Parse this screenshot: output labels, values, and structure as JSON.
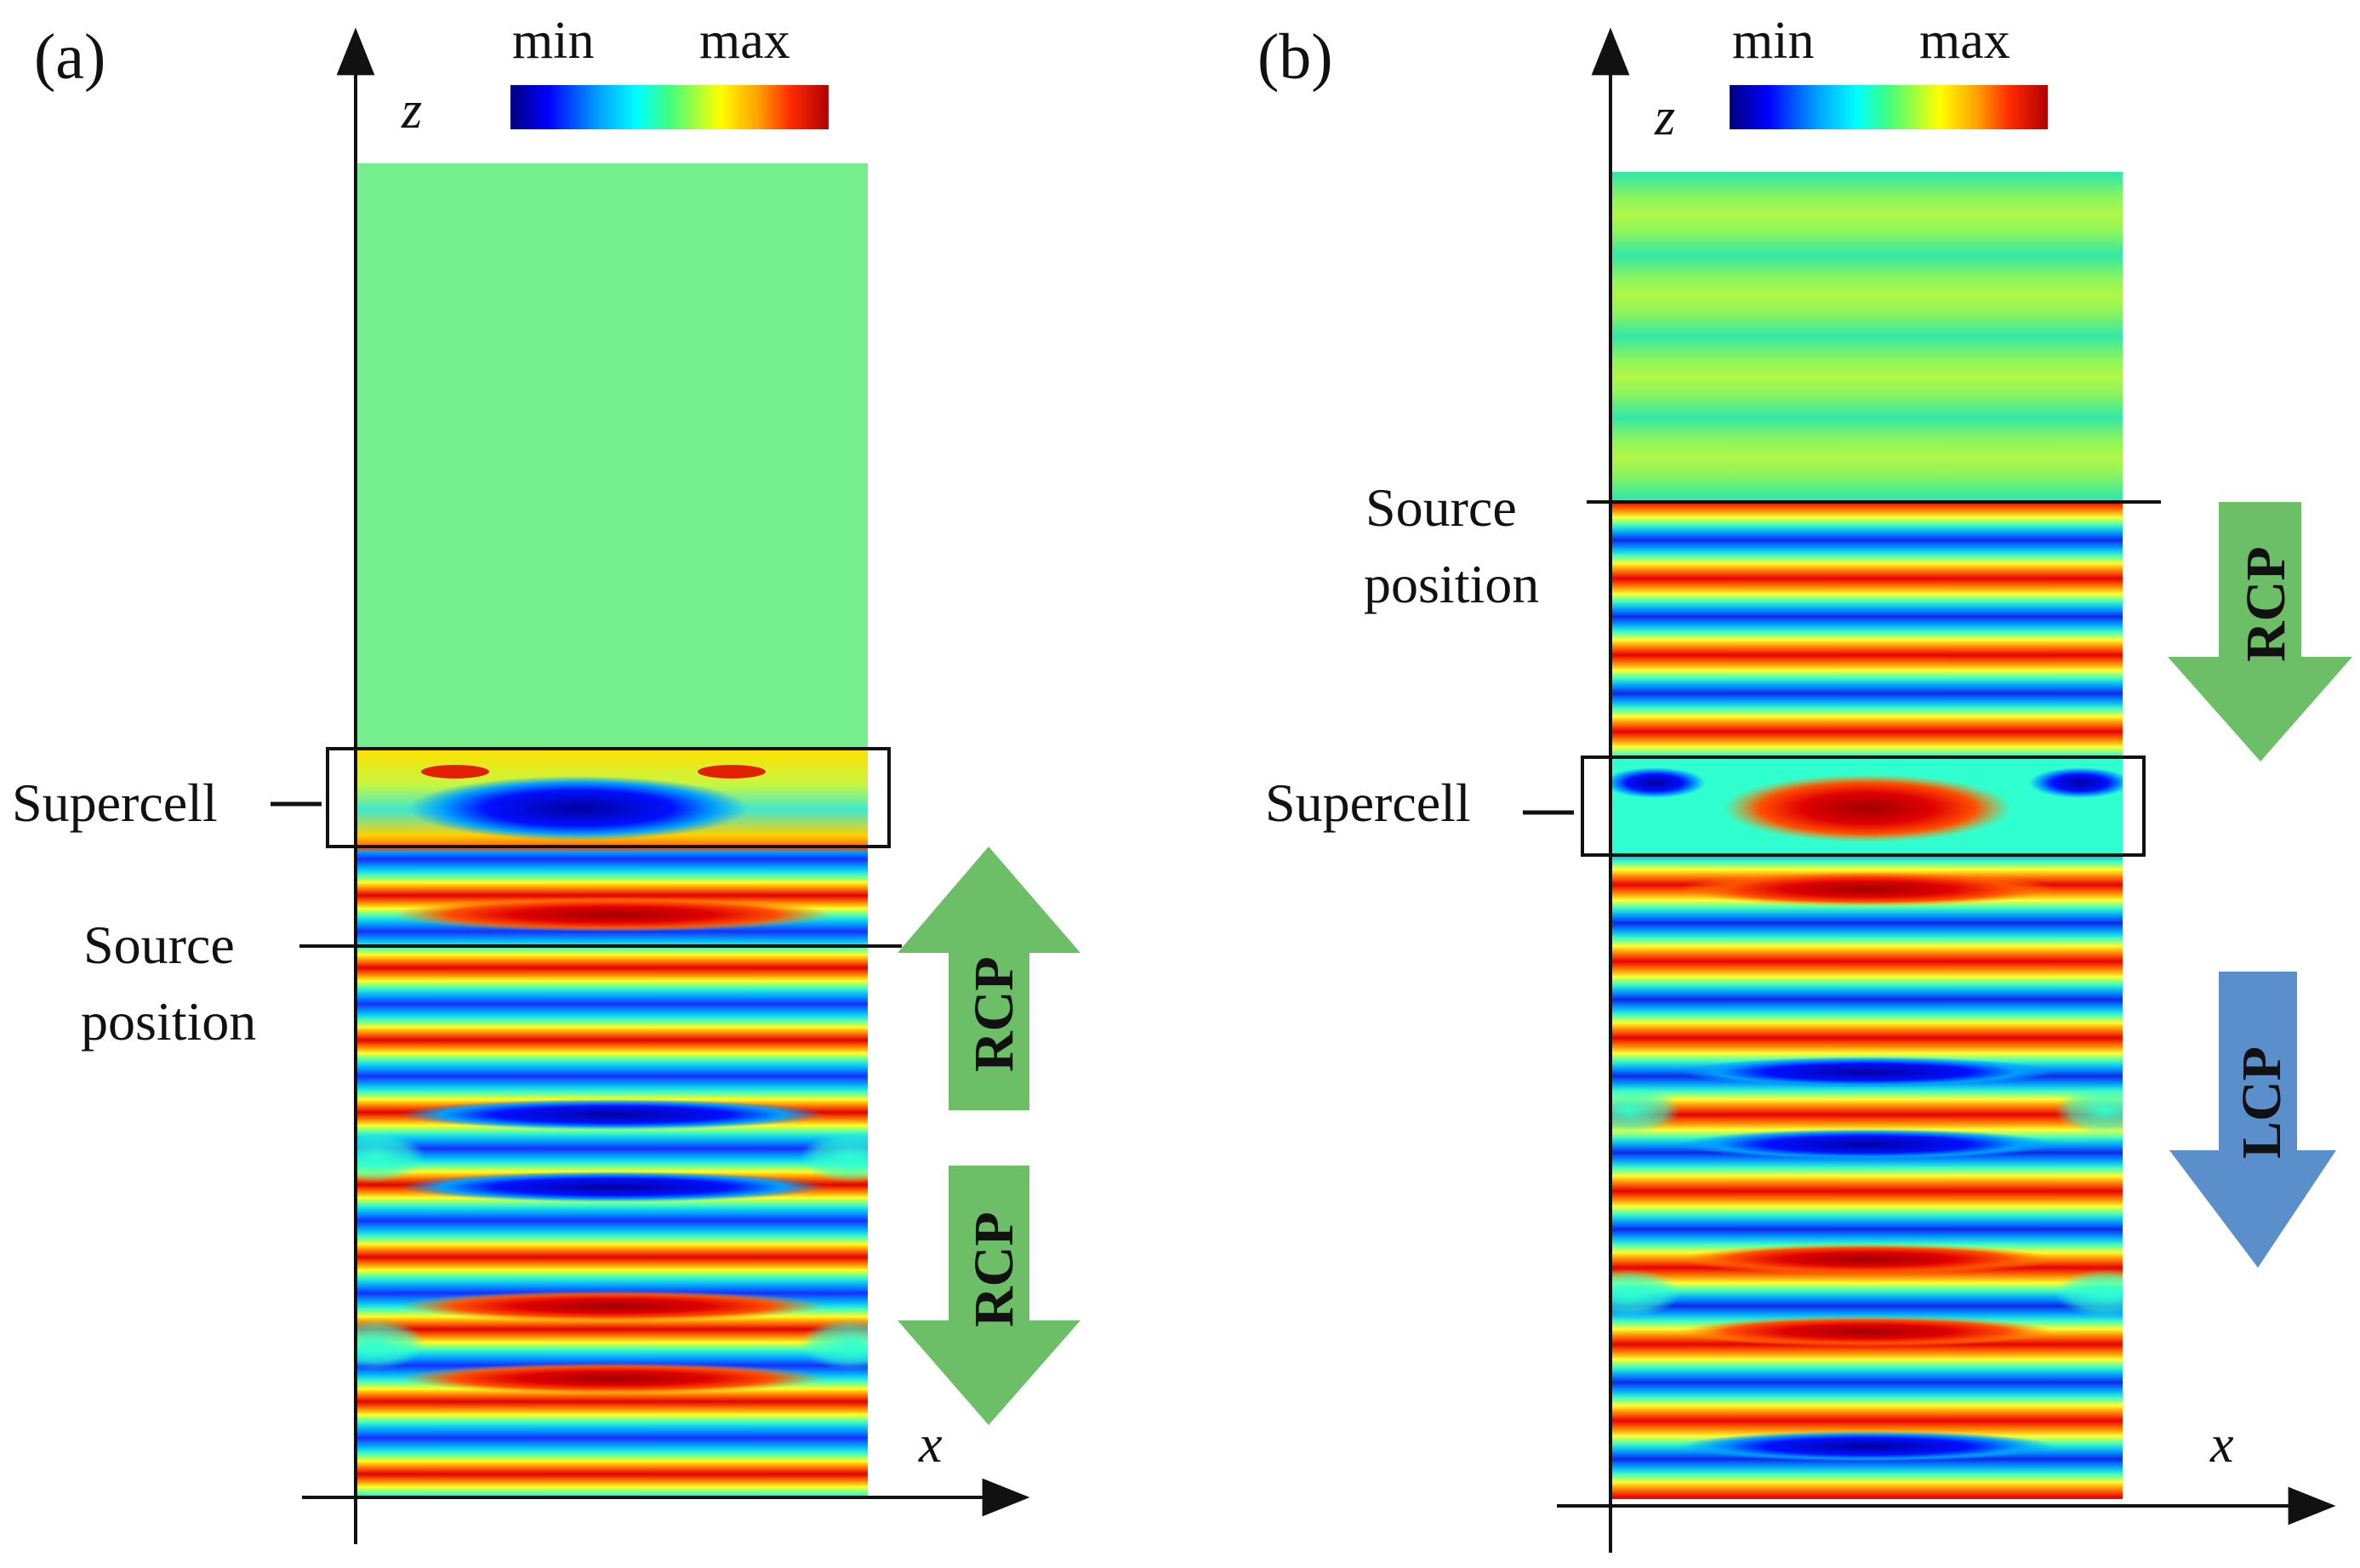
{
  "colormap": {
    "min_label": "min",
    "max_label": "max",
    "stops": [
      "#00007f",
      "#0000ff",
      "#00a5ff",
      "#00ffff",
      "#40ff7f",
      "#9fff3f",
      "#ffff00",
      "#ff9f00",
      "#ff2a00",
      "#d00000",
      "#7f0000"
    ]
  },
  "panels": [
    {
      "id": "a",
      "panel_label": "(a)",
      "z_axis_label": "z",
      "x_axis_label": "x",
      "supercell_label": "Supercell",
      "source_label_line1": "Source",
      "source_label_line2": "position",
      "arrows": [
        {
          "text": "RCP",
          "direction": "up",
          "color": "#6dbf67"
        },
        {
          "text": "RCP",
          "direction": "down",
          "color": "#6dbf67"
        }
      ]
    },
    {
      "id": "b",
      "panel_label": "(b)",
      "z_axis_label": "z",
      "x_axis_label": "x",
      "supercell_label": "Supercell",
      "source_label_line1": "Source",
      "source_label_line2": "position",
      "arrows": [
        {
          "text": "RCP",
          "direction": "down",
          "color": "#6dbf67"
        },
        {
          "text": "LCP",
          "direction": "down",
          "color": "#5b8fcc"
        }
      ]
    }
  ]
}
